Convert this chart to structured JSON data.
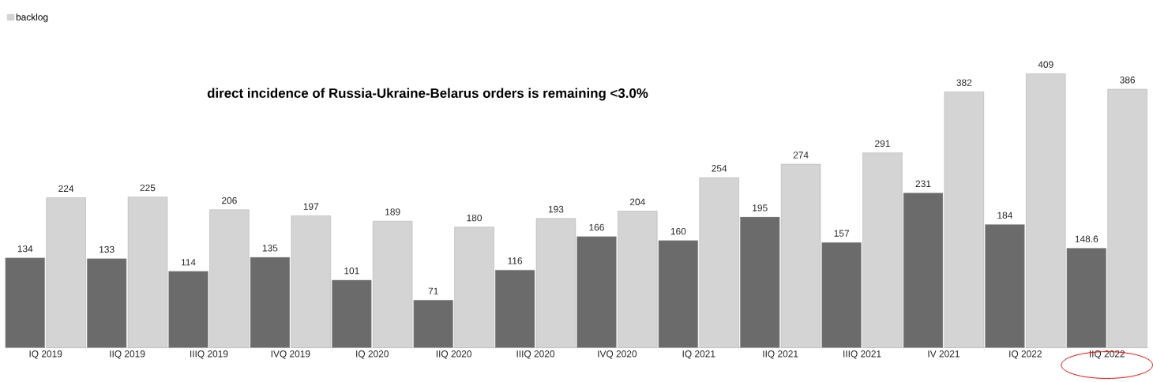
{
  "chart_data": {
    "type": "bar",
    "title": "direct incidence of Russia-Ukraine-Belarus orders is remaining <3.0%",
    "categories": [
      "IQ 2019",
      "IIQ 2019",
      "IIIQ 2019",
      "IVQ 2019",
      "IQ 2020",
      "IIQ 2020",
      "IIIQ 2020",
      "IVQ 2020",
      "IQ 2021",
      "IIQ 2021",
      "IIIQ 2021",
      "IV 2021",
      "IQ 2022",
      "IIQ 2022"
    ],
    "series": [
      {
        "color": "#6b6b6b",
        "values": [
          134,
          133,
          114,
          135,
          101,
          71,
          116,
          166,
          160,
          195,
          157,
          231,
          184,
          148.6
        ]
      },
      {
        "name": "backlog",
        "color": "#d4d4d4",
        "values": [
          224,
          225,
          206,
          197,
          189,
          180,
          193,
          204,
          254,
          274,
          291,
          382,
          409,
          386
        ]
      }
    ],
    "data_labels": true,
    "legend": "top left"
  }
}
